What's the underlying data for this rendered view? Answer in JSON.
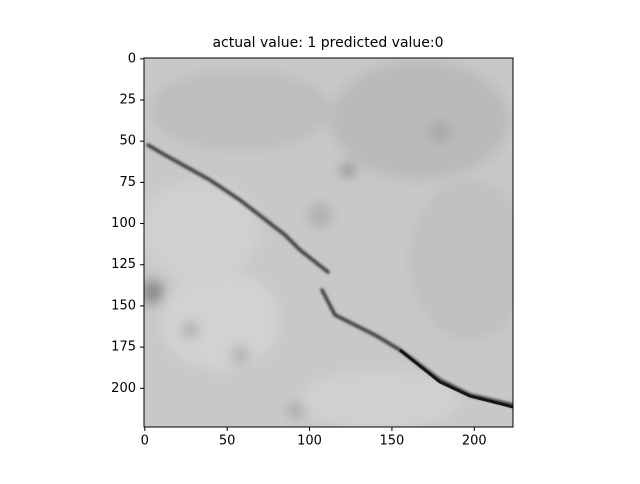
{
  "chart_data": {
    "type": "image",
    "title": "actual value: 1 predicted value:0",
    "xlim": [
      -0.5,
      223.5
    ],
    "ylim": [
      223.5,
      -0.5
    ],
    "xticks": [
      0,
      50,
      100,
      150,
      200
    ],
    "yticks": [
      0,
      25,
      50,
      75,
      100,
      125,
      150,
      175,
      200
    ]
  }
}
